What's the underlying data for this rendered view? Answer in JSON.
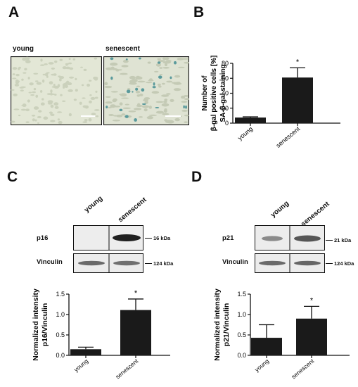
{
  "panels": {
    "A": {
      "letter": "A",
      "labels": [
        "young",
        "senescent"
      ]
    },
    "B": {
      "letter": "B"
    },
    "C": {
      "letter": "C",
      "lanes": [
        "young",
        "senescent"
      ],
      "rows": [
        {
          "label": "p16",
          "kda": "16 kDa"
        },
        {
          "label": "Vinculin",
          "kda": "124 kDa"
        }
      ]
    },
    "D": {
      "letter": "D",
      "lanes": [
        "young",
        "senescent"
      ],
      "rows": [
        {
          "label": "p21",
          "kda": "21 kDa"
        },
        {
          "label": "Vinculin",
          "kda": "124 kDa"
        }
      ]
    }
  },
  "chart_data": [
    {
      "type": "bar",
      "categories": [
        "young",
        "senescent"
      ],
      "values": [
        7.5,
        61
      ],
      "errors": [
        1,
        13
      ],
      "significance": [
        "",
        "*"
      ],
      "ylabel_lines": [
        "Number of",
        "β-gal positive cells [%]",
        "SA-β-gal staining"
      ],
      "yticks": [
        0,
        20,
        40,
        60,
        80
      ],
      "ylim": [
        0,
        80
      ],
      "bar_color": "#1a1a1a"
    },
    {
      "type": "bar",
      "categories": [
        "young",
        "senescent"
      ],
      "values": [
        0.15,
        1.11
      ],
      "errors": [
        0.05,
        0.27
      ],
      "significance": [
        "",
        "*"
      ],
      "ylabel_lines": [
        "Normalized intensity",
        "p16/Vinculin"
      ],
      "yticks": [
        "0.0",
        "0.5",
        "1.0",
        "1.5"
      ],
      "ylim": [
        0,
        1.5
      ],
      "bar_color": "#1a1a1a"
    },
    {
      "type": "bar",
      "categories": [
        "young",
        "senescent"
      ],
      "values": [
        0.43,
        0.9
      ],
      "errors": [
        0.32,
        0.3
      ],
      "significance": [
        "",
        "*"
      ],
      "ylabel_lines": [
        "Normalized intensity",
        "p21/Vinculin"
      ],
      "yticks": [
        "0.0",
        "0.5",
        "1.0",
        "1.5"
      ],
      "ylim": [
        0,
        1.5
      ],
      "bar_color": "#1a1a1a"
    }
  ]
}
